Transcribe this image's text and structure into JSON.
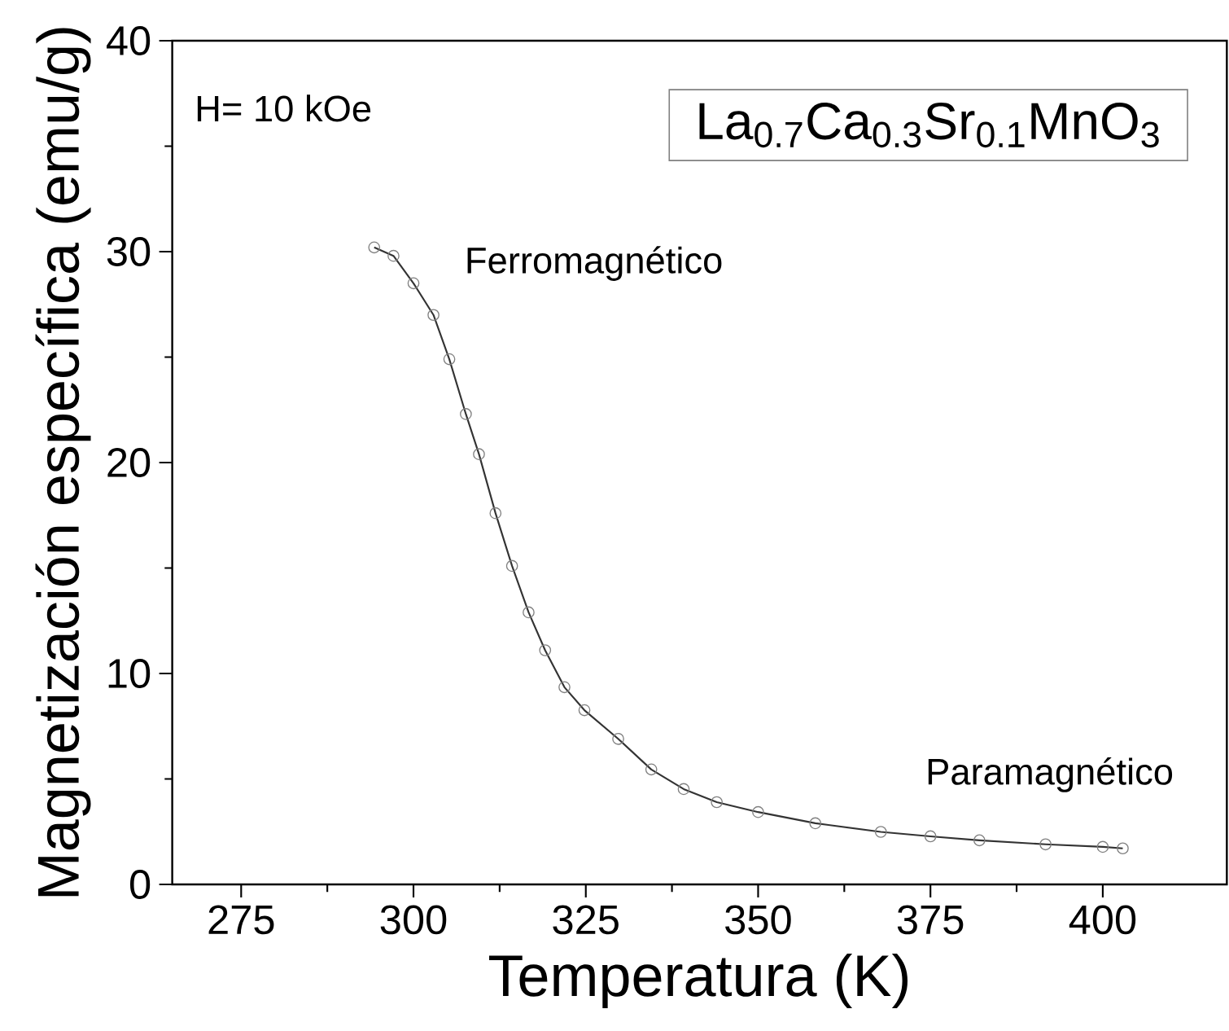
{
  "chart_data": {
    "type": "line",
    "xlabel": "Temperatura (K)",
    "ylabel": "Magnetización específica (emu/g)",
    "annotations": [
      "H= 10 kOe",
      "La$_{0.7}$Ca$_{0.3}$Sr$_{0.1}$MnO$_{3}$",
      "Ferromagnético",
      "Paramagnético"
    ],
    "xlim": [
      265,
      418
    ],
    "xticks": [
      275,
      300,
      325,
      350,
      375,
      400
    ],
    "ylim": [
      0,
      40
    ],
    "yticks": [
      0,
      10,
      20,
      30,
      40
    ],
    "marker": "circle",
    "line_style": "solid",
    "series": [
      {
        "color": "#333333",
        "x": [
          294.3,
          297.1,
          300,
          302.9,
          305.2,
          307.6,
          309.5,
          311.9,
          314.3,
          316.7,
          319.1,
          321.9,
          324.8,
          329.7,
          334.5,
          339.2,
          344.0,
          350,
          358.3,
          367.8,
          375,
          382.1,
          391.7,
          400,
          402.9
        ],
        "values": [
          30.2,
          29.8,
          28.5,
          27.0,
          24.9,
          22.3,
          20.4,
          17.6,
          15.1,
          12.9,
          11.1,
          9.35,
          8.26,
          6.9,
          5.45,
          4.52,
          3.9,
          3.43,
          2.9,
          2.49,
          2.28,
          2.09,
          1.9,
          1.78,
          1.71
        ]
      }
    ]
  }
}
